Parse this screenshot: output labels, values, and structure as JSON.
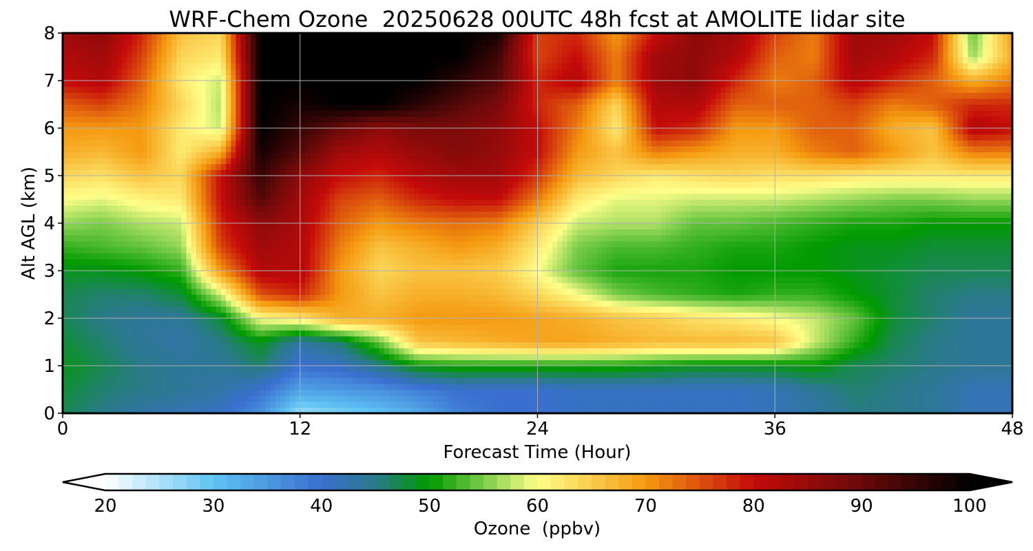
{
  "chart_data": {
    "type": "heatmap",
    "title": "WRF-Chem Ozone  20250628 00UTC 48h fcst at AMOLITE lidar site",
    "xlabel": "Forecast Time (Hour)",
    "ylabel": "Alt AGL (km)",
    "xlim": [
      0,
      48
    ],
    "ylim": [
      0,
      8
    ],
    "x_ticks": [
      0,
      12,
      24,
      36,
      48
    ],
    "y_ticks": [
      0,
      1,
      2,
      3,
      4,
      5,
      6,
      7,
      8
    ],
    "grid": true,
    "colorbar": {
      "label": "Ozone  (ppbv)",
      "range": [
        20,
        100
      ],
      "ticks": [
        20,
        30,
        40,
        50,
        60,
        70,
        80,
        90,
        100
      ],
      "extend": "both",
      "stops": [
        {
          "value": 20,
          "color": "#ffffff"
        },
        {
          "value": 30,
          "color": "#5fc3f3"
        },
        {
          "value": 40,
          "color": "#3a6fd0"
        },
        {
          "value": 45,
          "color": "#2a7a8a"
        },
        {
          "value": 50,
          "color": "#009a00"
        },
        {
          "value": 55,
          "color": "#7acc4a"
        },
        {
          "value": 60,
          "color": "#ffff8a"
        },
        {
          "value": 70,
          "color": "#f59a10"
        },
        {
          "value": 80,
          "color": "#c40a0a"
        },
        {
          "value": 90,
          "color": "#6a0a0a"
        },
        {
          "value": 100,
          "color": "#000000"
        }
      ]
    },
    "x": [
      0,
      2,
      4,
      6,
      8,
      10,
      12,
      14,
      16,
      18,
      20,
      22,
      24,
      26,
      28,
      30,
      32,
      34,
      36,
      38,
      40,
      42,
      44,
      46,
      48
    ],
    "y": [
      0,
      0.5,
      1,
      1.5,
      2,
      2.5,
      3,
      3.5,
      4,
      4.5,
      5,
      5.5,
      6,
      6.5,
      7,
      7.5,
      8
    ],
    "z": [
      [
        47,
        45,
        43,
        42,
        41,
        36,
        26,
        28,
        30,
        33,
        38,
        40,
        40,
        41,
        41,
        41,
        41,
        41,
        42,
        43,
        45,
        45,
        44,
        42,
        42
      ],
      [
        48,
        46,
        45,
        44,
        43,
        40,
        34,
        35,
        36,
        38,
        40,
        40,
        40,
        41,
        41,
        41,
        41,
        41,
        42,
        44,
        46,
        45,
        44,
        42,
        42
      ],
      [
        49,
        47,
        45,
        44,
        44,
        46,
        40,
        41,
        45,
        50,
        51,
        51,
        51,
        51,
        51,
        50,
        49,
        49,
        49,
        50,
        47,
        46,
        45,
        44,
        44
      ],
      [
        48,
        46,
        44,
        43,
        45,
        49,
        43,
        46,
        54,
        66,
        67,
        68,
        69,
        69,
        68,
        67,
        67,
        67,
        66,
        58,
        52,
        47,
        45,
        44,
        44
      ],
      [
        47,
        45,
        44,
        44,
        48,
        60,
        62,
        68,
        68,
        70,
        70,
        70,
        69,
        68,
        66,
        65,
        63,
        62,
        60,
        58,
        54,
        48,
        46,
        44,
        44
      ],
      [
        47,
        46,
        46,
        48,
        58,
        75,
        78,
        70,
        66,
        68,
        68,
        67,
        64,
        60,
        55,
        53,
        52,
        51,
        52,
        52,
        50,
        48,
        46,
        45,
        45
      ],
      [
        49,
        49,
        50,
        52,
        70,
        82,
        82,
        70,
        64,
        66,
        66,
        65,
        60,
        54,
        51,
        51,
        51,
        50,
        50,
        50,
        49,
        48,
        47,
        47,
        47
      ],
      [
        52,
        53,
        54,
        56,
        76,
        84,
        82,
        72,
        66,
        68,
        70,
        68,
        62,
        55,
        53,
        53,
        52,
        51,
        51,
        50,
        49,
        49,
        48,
        48,
        48
      ],
      [
        56,
        55,
        57,
        58,
        78,
        86,
        83,
        74,
        70,
        72,
        73,
        72,
        65,
        58,
        57,
        57,
        54,
        54,
        53,
        52,
        51,
        51,
        50,
        50,
        50
      ],
      [
        60,
        59,
        61,
        62,
        80,
        92,
        84,
        76,
        74,
        78,
        80,
        80,
        72,
        62,
        59,
        59,
        58,
        58,
        58,
        57,
        56,
        55,
        55,
        56,
        56
      ],
      [
        64,
        63,
        66,
        64,
        80,
        95,
        86,
        80,
        78,
        82,
        84,
        84,
        77,
        67,
        64,
        62,
        63,
        64,
        63,
        63,
        62,
        62,
        62,
        62,
        62
      ],
      [
        68,
        67,
        70,
        62,
        68,
        98,
        92,
        84,
        82,
        85,
        87,
        85,
        80,
        70,
        66,
        72,
        70,
        68,
        68,
        72,
        74,
        70,
        66,
        72,
        72
      ],
      [
        70,
        70,
        70,
        62,
        58,
        100,
        95,
        90,
        86,
        88,
        88,
        86,
        80,
        72,
        62,
        80,
        78,
        70,
        70,
        74,
        74,
        68,
        66,
        82,
        80
      ],
      [
        74,
        76,
        72,
        64,
        57,
        100,
        98,
        100,
        100,
        96,
        92,
        88,
        78,
        74,
        64,
        82,
        82,
        74,
        74,
        74,
        76,
        72,
        74,
        78,
        78
      ],
      [
        80,
        82,
        74,
        62,
        58,
        100,
        100,
        100,
        100,
        100,
        96,
        92,
        78,
        82,
        72,
        84,
        86,
        78,
        72,
        74,
        82,
        78,
        74,
        68,
        72
      ],
      [
        82,
        84,
        76,
        64,
        62,
        100,
        100,
        100,
        100,
        100,
        100,
        94,
        76,
        80,
        72,
        84,
        86,
        82,
        74,
        72,
        84,
        82,
        78,
        56,
        68
      ],
      [
        84,
        86,
        78,
        66,
        64,
        100,
        100,
        100,
        100,
        100,
        100,
        98,
        76,
        78,
        70,
        80,
        86,
        84,
        76,
        72,
        84,
        84,
        80,
        54,
        70
      ]
    ]
  }
}
